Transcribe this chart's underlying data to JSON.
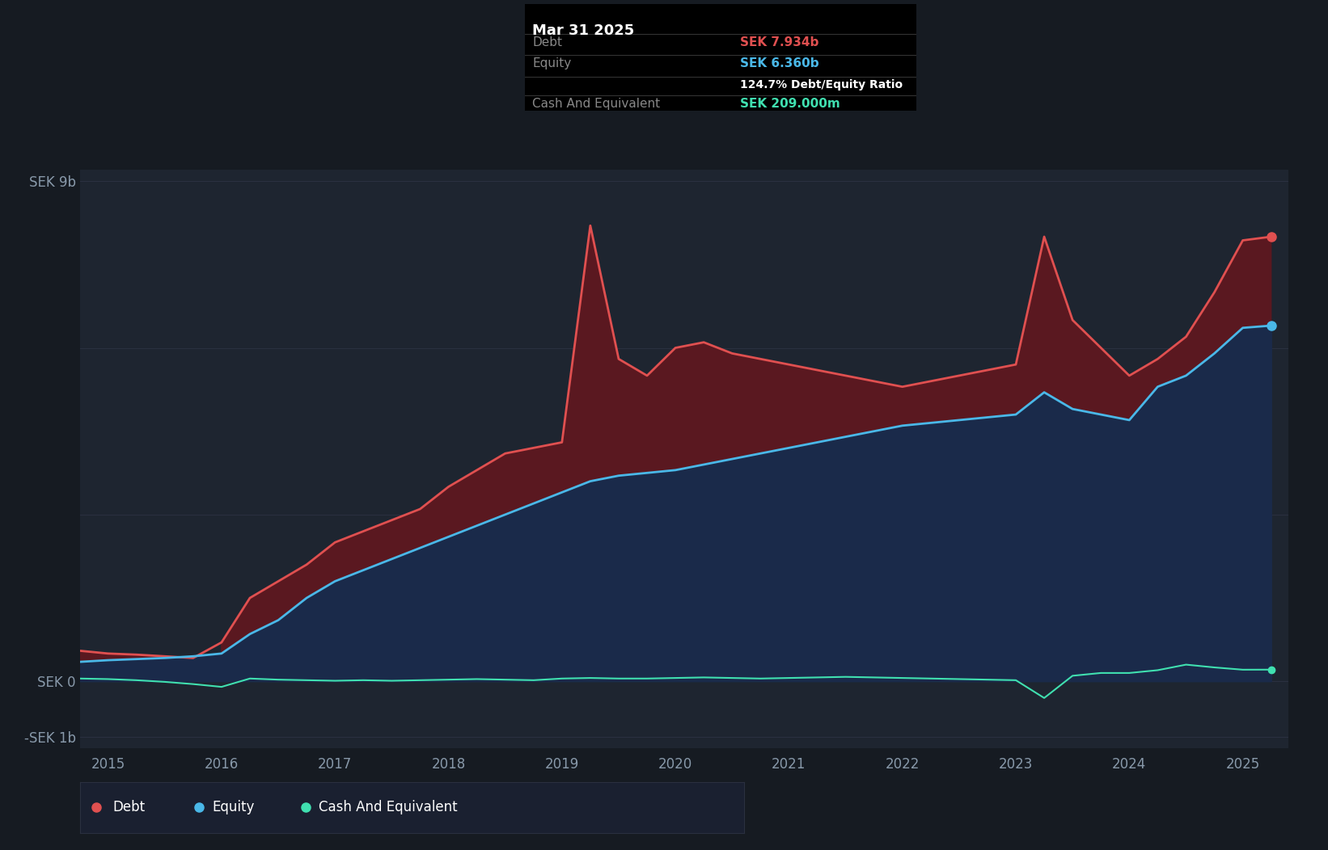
{
  "bg_color": "#161b22",
  "plot_bg_color": "#1e2530",
  "grid_color": "#2a3040",
  "axis_label_color": "#8899aa",
  "tick_label_color": "#8899aa",
  "debt_color": "#e05050",
  "equity_color": "#4ab8e8",
  "cash_color": "#40e0b0",
  "debt_fill_color": "#5a1820",
  "equity_fill_color": "#1a2a4a",
  "ylim_min": -1000000000.0,
  "ylim_max": 9000000000.0,
  "yticks": [
    -1000000000.0,
    0,
    3000000000.0,
    6000000000.0,
    9000000000.0
  ],
  "ytick_labels": [
    "-SEK 1b",
    "SEK 0",
    "",
    "",
    "SEK 9b"
  ],
  "ygrid_values": [
    -1000000000.0,
    0,
    3000000000.0,
    6000000000.0,
    9000000000.0
  ],
  "xlabel_years": [
    2015,
    2016,
    2017,
    2018,
    2019,
    2020,
    2021,
    2022,
    2023,
    2024,
    2025
  ],
  "tooltip_box_color": "#000000",
  "tooltip_title": "Mar 31 2025",
  "tooltip_debt_label": "Debt",
  "tooltip_debt_value": "SEK 7.934b",
  "tooltip_equity_label": "Equity",
  "tooltip_equity_value": "SEK 6.360b",
  "tooltip_ratio": "124.7% Debt/Equity Ratio",
  "tooltip_cash_label": "Cash And Equivalent",
  "tooltip_cash_value": "SEK 209.000m",
  "legend_items": [
    "Debt",
    "Equity",
    "Cash And Equivalent"
  ],
  "time_points": [
    2014.75,
    2015.0,
    2015.25,
    2015.5,
    2015.75,
    2016.0,
    2016.25,
    2016.5,
    2016.75,
    2017.0,
    2017.25,
    2017.5,
    2017.75,
    2018.0,
    2018.25,
    2018.5,
    2018.75,
    2019.0,
    2019.25,
    2019.5,
    2019.75,
    2020.0,
    2020.25,
    2020.5,
    2020.75,
    2021.0,
    2021.25,
    2021.5,
    2021.75,
    2022.0,
    2022.25,
    2022.5,
    2022.75,
    2023.0,
    2023.25,
    2023.5,
    2023.75,
    2024.0,
    2024.25,
    2024.5,
    2024.75,
    2025.0,
    2025.25
  ],
  "debt": [
    550000000.0,
    500000000.0,
    480000000.0,
    450000000.0,
    420000000.0,
    700000000.0,
    1500000000.0,
    1800000000.0,
    2100000000.0,
    2500000000.0,
    2700000000.0,
    2900000000.0,
    3100000000.0,
    3500000000.0,
    3800000000.0,
    4100000000.0,
    4200000000.0,
    4300000000.0,
    8200000000.0,
    5800000000.0,
    5500000000.0,
    6000000000.0,
    6100000000.0,
    5900000000.0,
    5800000000.0,
    5700000000.0,
    5600000000.0,
    5500000000.0,
    5400000000.0,
    5300000000.0,
    5400000000.0,
    5500000000.0,
    5600000000.0,
    5700000000.0,
    8000000000.0,
    6500000000.0,
    6000000000.0,
    5500000000.0,
    5800000000.0,
    6200000000.0,
    7000000000.0,
    7934000000.0,
    8000000000.0
  ],
  "equity": [
    350000000.0,
    380000000.0,
    400000000.0,
    420000000.0,
    450000000.0,
    500000000.0,
    850000000.0,
    1100000000.0,
    1500000000.0,
    1800000000.0,
    2000000000.0,
    2200000000.0,
    2400000000.0,
    2600000000.0,
    2800000000.0,
    3000000000.0,
    3200000000.0,
    3400000000.0,
    3600000000.0,
    3700000000.0,
    3750000000.0,
    3800000000.0,
    3900000000.0,
    4000000000.0,
    4100000000.0,
    4200000000.0,
    4300000000.0,
    4400000000.0,
    4500000000.0,
    4600000000.0,
    4650000000.0,
    4700000000.0,
    4750000000.0,
    4800000000.0,
    5200000000.0,
    4900000000.0,
    4800000000.0,
    4700000000.0,
    5300000000.0,
    5500000000.0,
    5900000000.0,
    6360000000.0,
    6400000000.0
  ],
  "cash": [
    50000000.0,
    40000000.0,
    20000000.0,
    -10000000.0,
    -50000000.0,
    -100000000.0,
    50000000.0,
    30000000.0,
    20000000.0,
    10000000.0,
    20000000.0,
    10000000.0,
    20000000.0,
    30000000.0,
    40000000.0,
    30000000.0,
    20000000.0,
    50000000.0,
    60000000.0,
    50000000.0,
    50000000.0,
    60000000.0,
    70000000.0,
    60000000.0,
    50000000.0,
    60000000.0,
    70000000.0,
    80000000.0,
    70000000.0,
    60000000.0,
    50000000.0,
    40000000.0,
    30000000.0,
    20000000.0,
    -300000000.0,
    100000000.0,
    150000000.0,
    150000000.0,
    200000000.0,
    300000000.0,
    250000000.0,
    209000000.0,
    210000000.0
  ]
}
